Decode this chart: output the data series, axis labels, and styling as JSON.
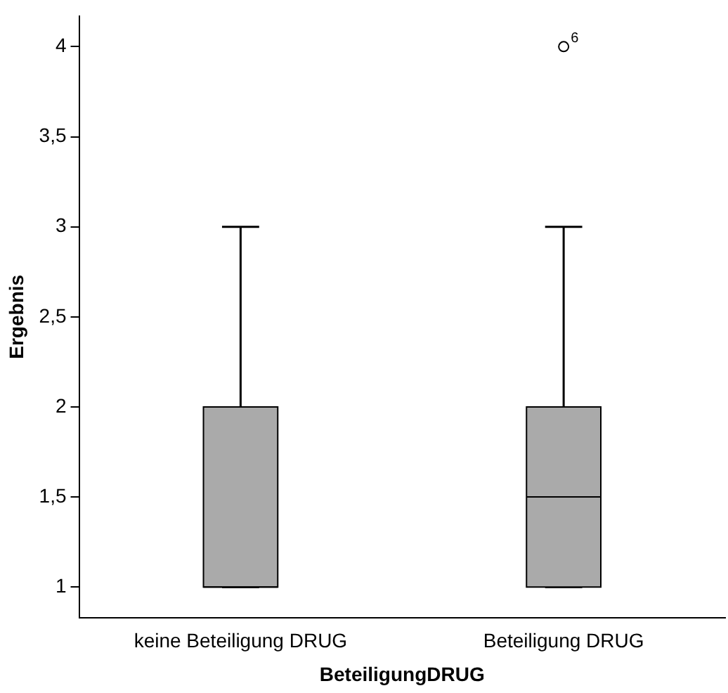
{
  "chart_data": {
    "type": "box",
    "xlabel": "BeteiligungDRUG",
    "ylabel": "Ergebnis",
    "categories": [
      "keine Beteiligung DRUG",
      "Beteiligung DRUG"
    ],
    "color": "#aaaaaa",
    "boxes": [
      {
        "low": 1,
        "q1": 1,
        "median": 1,
        "q3": 2,
        "high": 3
      },
      {
        "low": 1,
        "q1": 1,
        "median": 1.5,
        "q3": 2,
        "high": 3,
        "outliers": [
          4
        ]
      }
    ],
    "ylim": [
      0.83,
      4.17
    ],
    "yticks": [
      1,
      {
        "value": 1.5,
        "label": "1,5"
      },
      2,
      {
        "value": 2.5,
        "label": "2,5"
      },
      3,
      {
        "value": 3.5,
        "label": "3,5"
      },
      4
    ],
    "annotations": [
      "6"
    ],
    "grid": false,
    "legend": false
  }
}
